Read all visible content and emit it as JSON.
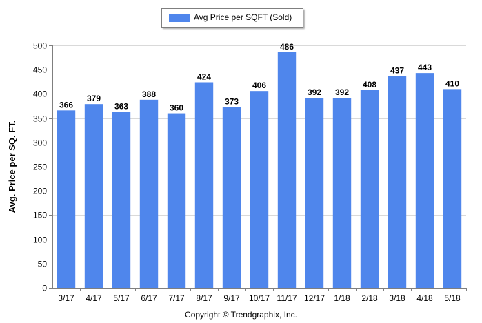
{
  "legend": {
    "label": "Avg Price per SQFT (Sold)"
  },
  "copyright": "Copyright © Trendgraphix, Inc.",
  "colors": {
    "bar": "#4f86ec",
    "grid": "#d9d9d9",
    "axis": "#7f7f7f"
  },
  "chart_data": {
    "type": "bar",
    "title": "",
    "xlabel": "",
    "ylabel": "Avg. Price per SQ. FT.",
    "ylim": [
      0,
      500
    ],
    "yticks": [
      0,
      50,
      100,
      150,
      200,
      250,
      300,
      350,
      400,
      450,
      500
    ],
    "grid": true,
    "legend_position": "top-center",
    "categories": [
      "3/17",
      "4/17",
      "5/17",
      "6/17",
      "7/17",
      "8/17",
      "9/17",
      "10/17",
      "11/17",
      "12/17",
      "1/18",
      "2/18",
      "3/18",
      "4/18",
      "5/18"
    ],
    "series": [
      {
        "name": "Avg Price per SQFT (Sold)",
        "values": [
          366,
          379,
          363,
          388,
          360,
          424,
          373,
          406,
          486,
          392,
          392,
          408,
          437,
          443,
          410
        ]
      }
    ]
  }
}
